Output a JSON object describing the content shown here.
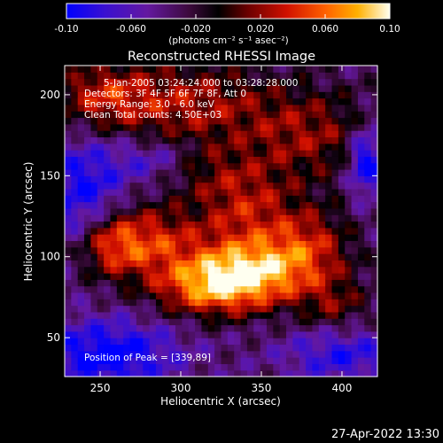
{
  "chart_data": {
    "type": "heatmap",
    "title": "Reconstructed RHESSI Image",
    "xlabel": "Heliocentric X (arcsec)",
    "ylabel": "Heliocentric Y (arcsec)",
    "xlim": [
      228,
      422
    ],
    "ylim": [
      26,
      218
    ],
    "x_ticks": [
      250,
      300,
      350,
      400
    ],
    "y_ticks": [
      50,
      100,
      150,
      200
    ],
    "colorbar": {
      "min": -0.1,
      "max": 0.1,
      "ticks": [
        "-0.10",
        "-0.060",
        "-0.020",
        "0.020",
        "0.060",
        "0.10"
      ],
      "tick_values": [
        -0.1,
        -0.06,
        -0.02,
        0.02,
        0.06,
        0.1
      ],
      "label": "(photons cm⁻² s⁻¹ asec⁻²)"
    },
    "annotations": [
      "5-Jan-2005 03:24:24.000 to 03:28:28.000",
      "Detectors: 3F 4F 5F 6F 7F 8F, Att 0",
      "Energy Range: 3.0 - 6.0 keV",
      "Clean     Total counts: 4.50E+03"
    ],
    "peak_label": "Position of Peak = [339,89]",
    "peak": [
      339,
      89
    ],
    "sources": [
      {
        "x": 345,
        "y": 92,
        "amp": 0.1,
        "sx": 30,
        "sy": 14
      },
      {
        "x": 320,
        "y": 80,
        "amp": 0.08,
        "sx": 25,
        "sy": 12
      },
      {
        "x": 280,
        "y": 110,
        "amp": 0.07,
        "sx": 22,
        "sy": 16
      },
      {
        "x": 255,
        "y": 108,
        "amp": 0.06,
        "sx": 14,
        "sy": 14
      },
      {
        "x": 340,
        "y": 130,
        "amp": 0.06,
        "sx": 22,
        "sy": 20
      },
      {
        "x": 380,
        "y": 110,
        "amp": 0.05,
        "sx": 18,
        "sy": 16
      },
      {
        "x": 300,
        "y": 195,
        "amp": 0.06,
        "sx": 40,
        "sy": 18
      },
      {
        "x": 250,
        "y": 200,
        "amp": 0.05,
        "sx": 20,
        "sy": 14
      },
      {
        "x": 380,
        "y": 175,
        "amp": 0.05,
        "sx": 30,
        "sy": 20
      },
      {
        "x": 310,
        "y": 155,
        "amp": 0.03,
        "sx": 20,
        "sy": 12
      },
      {
        "x": 395,
        "y": 70,
        "amp": 0.04,
        "sx": 15,
        "sy": 12
      },
      {
        "x": 255,
        "y": 40,
        "amp": -0.07,
        "sx": 30,
        "sy": 15
      },
      {
        "x": 240,
        "y": 140,
        "amp": -0.06,
        "sx": 18,
        "sy": 25
      },
      {
        "x": 285,
        "y": 160,
        "amp": -0.04,
        "sx": 20,
        "sy": 10
      },
      {
        "x": 400,
        "y": 40,
        "amp": -0.05,
        "sx": 25,
        "sy": 12
      },
      {
        "x": 415,
        "y": 160,
        "amp": -0.08,
        "sx": 8,
        "sy": 15
      }
    ]
  },
  "timestamp": "27-Apr-2022 13:30"
}
